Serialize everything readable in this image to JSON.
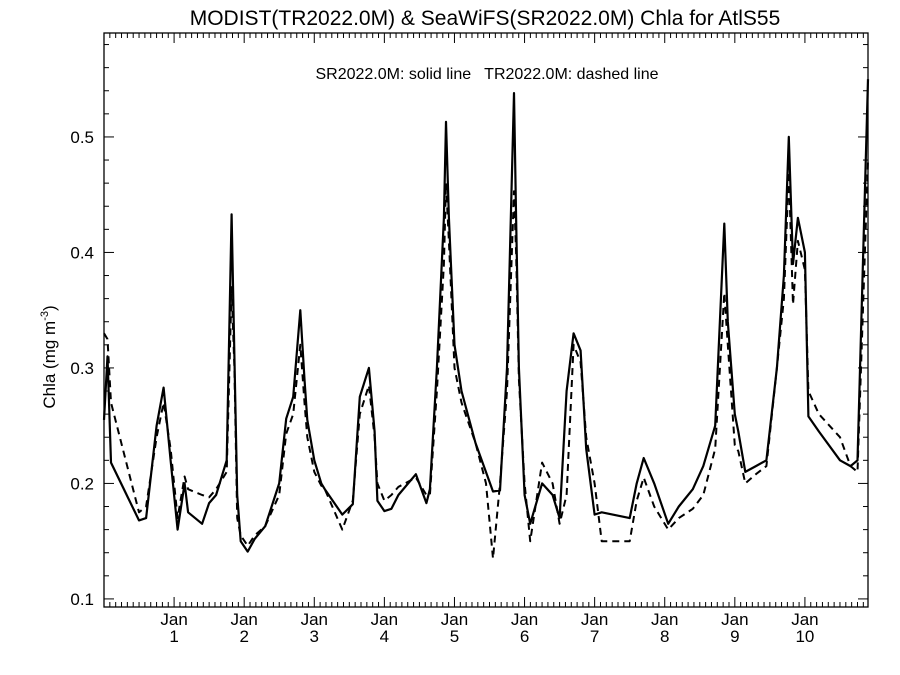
{
  "chart_data": {
    "type": "line",
    "title": "MODIST(TR2022.0M) & SeaWiFS(SR2022.0M)  Chla for AtlS55",
    "legend_text": "SR2022.0M: solid line   TR2022.0M: dashed line",
    "ylabel_main": "Chla (mg m",
    "ylabel_sup": "-3",
    "ylabel_close": ")",
    "xlim": [
      0,
      10.9
    ],
    "ylim": [
      0.093,
      0.59
    ],
    "yticks": [
      0.1,
      0.2,
      0.3,
      0.4,
      0.5
    ],
    "ytick_labels": [
      "0.1",
      "0.2",
      "0.3",
      "0.4",
      "0.5"
    ],
    "xticks": [
      {
        "x": 1,
        "month": "Jan",
        "year": "1"
      },
      {
        "x": 2,
        "month": "Jan",
        "year": "2"
      },
      {
        "x": 3,
        "month": "Jan",
        "year": "3"
      },
      {
        "x": 4,
        "month": "Jan",
        "year": "4"
      },
      {
        "x": 5,
        "month": "Jan",
        "year": "5"
      },
      {
        "x": 6,
        "month": "Jan",
        "year": "6"
      },
      {
        "x": 7,
        "month": "Jan",
        "year": "7"
      },
      {
        "x": 8,
        "month": "Jan",
        "year": "8"
      },
      {
        "x": 9,
        "month": "Jan",
        "year": "9"
      },
      {
        "x": 10,
        "month": "Jan",
        "year": "10"
      }
    ],
    "series": [
      {
        "style": "solid",
        "x": [
          0.0,
          0.05,
          0.1,
          0.5,
          0.6,
          0.75,
          0.85,
          0.95,
          1.05,
          1.15,
          1.2,
          1.4,
          1.5,
          1.6,
          1.75,
          1.82,
          1.86,
          1.9,
          1.95,
          2.05,
          2.15,
          2.3,
          2.5,
          2.6,
          2.7,
          2.8,
          2.86,
          2.9,
          3.0,
          3.1,
          3.15,
          3.4,
          3.55,
          3.65,
          3.78,
          3.86,
          3.9,
          4.0,
          4.1,
          4.2,
          4.45,
          4.6,
          4.65,
          4.75,
          4.85,
          4.88,
          4.92,
          5.0,
          5.1,
          5.3,
          5.55,
          5.65,
          5.75,
          5.85,
          5.88,
          5.92,
          6.0,
          6.08,
          6.25,
          6.4,
          6.5,
          6.6,
          6.7,
          6.8,
          6.88,
          7.0,
          7.1,
          7.5,
          7.6,
          7.7,
          7.85,
          8.05,
          8.2,
          8.4,
          8.55,
          8.72,
          8.85,
          8.9,
          9.0,
          9.05,
          9.15,
          9.3,
          9.45,
          9.6,
          9.7,
          9.77,
          9.83,
          9.9,
          10.0,
          10.05,
          10.2,
          10.5,
          10.65,
          10.75,
          10.9
        ],
        "y": [
          0.255,
          0.31,
          0.218,
          0.168,
          0.17,
          0.25,
          0.283,
          0.22,
          0.16,
          0.2,
          0.175,
          0.165,
          0.183,
          0.19,
          0.22,
          0.433,
          0.31,
          0.19,
          0.15,
          0.141,
          0.152,
          0.163,
          0.2,
          0.256,
          0.275,
          0.35,
          0.29,
          0.255,
          0.22,
          0.2,
          0.195,
          0.173,
          0.182,
          0.275,
          0.3,
          0.245,
          0.185,
          0.176,
          0.178,
          0.19,
          0.208,
          0.183,
          0.195,
          0.3,
          0.43,
          0.513,
          0.43,
          0.32,
          0.28,
          0.235,
          0.193,
          0.194,
          0.3,
          0.538,
          0.43,
          0.3,
          0.19,
          0.165,
          0.2,
          0.19,
          0.17,
          0.28,
          0.33,
          0.315,
          0.23,
          0.173,
          0.175,
          0.17,
          0.2,
          0.222,
          0.2,
          0.165,
          0.18,
          0.195,
          0.215,
          0.25,
          0.425,
          0.34,
          0.26,
          0.245,
          0.21,
          0.215,
          0.22,
          0.3,
          0.38,
          0.5,
          0.39,
          0.43,
          0.4,
          0.258,
          0.245,
          0.22,
          0.215,
          0.22,
          0.55
        ]
      },
      {
        "style": "dashed",
        "x": [
          0.0,
          0.05,
          0.1,
          0.5,
          0.6,
          0.75,
          0.85,
          0.95,
          1.05,
          1.15,
          1.2,
          1.4,
          1.5,
          1.6,
          1.75,
          1.82,
          1.86,
          1.9,
          1.95,
          2.05,
          2.15,
          2.3,
          2.5,
          2.6,
          2.7,
          2.8,
          2.86,
          2.9,
          3.0,
          3.1,
          3.15,
          3.4,
          3.55,
          3.65,
          3.78,
          3.86,
          3.9,
          4.0,
          4.1,
          4.2,
          4.45,
          4.6,
          4.65,
          4.75,
          4.85,
          4.88,
          4.92,
          5.0,
          5.1,
          5.3,
          5.45,
          5.55,
          5.65,
          5.75,
          5.85,
          5.88,
          5.92,
          6.0,
          6.08,
          6.25,
          6.4,
          6.5,
          6.6,
          6.7,
          6.8,
          6.88,
          7.0,
          7.1,
          7.5,
          7.6,
          7.7,
          7.85,
          8.05,
          8.2,
          8.4,
          8.55,
          8.72,
          8.85,
          8.9,
          9.0,
          9.05,
          9.15,
          9.3,
          9.45,
          9.6,
          9.7,
          9.77,
          9.83,
          9.9,
          10.0,
          10.05,
          10.2,
          10.5,
          10.65,
          10.75,
          10.9
        ],
        "y": [
          0.33,
          0.325,
          0.27,
          0.175,
          0.18,
          0.24,
          0.27,
          0.23,
          0.17,
          0.206,
          0.195,
          0.19,
          0.188,
          0.195,
          0.21,
          0.37,
          0.3,
          0.17,
          0.155,
          0.146,
          0.155,
          0.163,
          0.19,
          0.243,
          0.26,
          0.32,
          0.27,
          0.24,
          0.21,
          0.198,
          0.195,
          0.16,
          0.185,
          0.26,
          0.285,
          0.24,
          0.2,
          0.185,
          0.19,
          0.197,
          0.205,
          0.19,
          0.19,
          0.28,
          0.39,
          0.46,
          0.41,
          0.3,
          0.27,
          0.235,
          0.2,
          0.135,
          0.2,
          0.28,
          0.453,
          0.4,
          0.29,
          0.2,
          0.15,
          0.218,
          0.2,
          0.165,
          0.19,
          0.32,
          0.305,
          0.24,
          0.2,
          0.15,
          0.15,
          0.185,
          0.205,
          0.18,
          0.16,
          0.17,
          0.178,
          0.19,
          0.23,
          0.365,
          0.32,
          0.233,
          0.228,
          0.2,
          0.208,
          0.215,
          0.3,
          0.36,
          0.47,
          0.355,
          0.41,
          0.385,
          0.28,
          0.26,
          0.24,
          0.215,
          0.21,
          0.48
        ]
      }
    ]
  }
}
